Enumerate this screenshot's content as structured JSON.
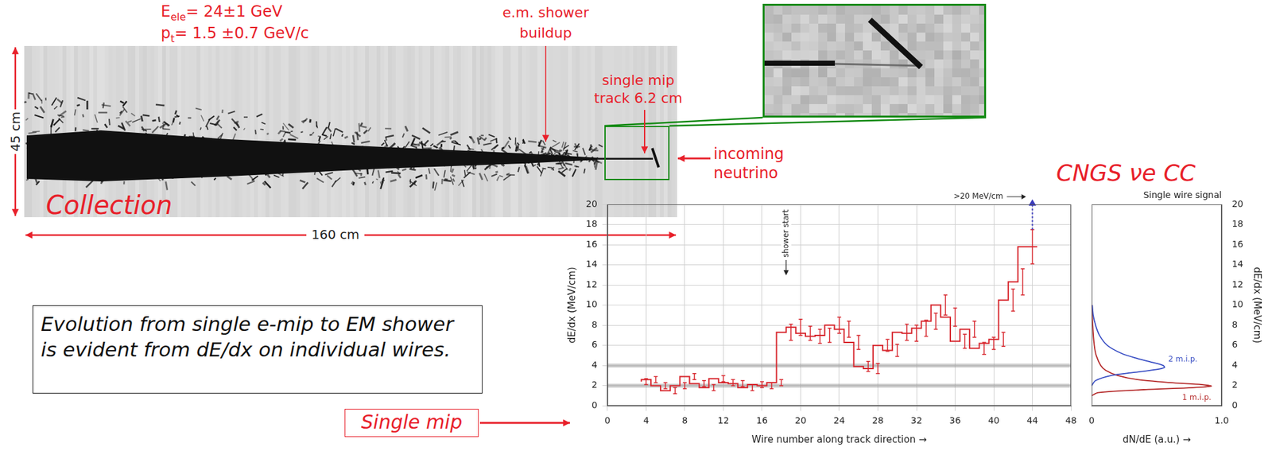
{
  "event_display": {
    "energy": {
      "symbol": "E",
      "subscript": "ele",
      "text": "= 24±1 GeV"
    },
    "pt": {
      "symbol": "p",
      "subscript": "t",
      "text": "= 1.5 ±0.7 GeV/c"
    },
    "shower_annotation": "e.m. shower buildup",
    "track_annotation": "single mip track 6.2 cm",
    "neutrino_annotation": "incoming neutrino",
    "height_label": "45 cm",
    "width_label": "160 cm",
    "view": "Collection"
  },
  "title": "CNGS νe CC",
  "caption": "Evolution from single e-mip to EM shower is evident from dE/dx on individual wires.",
  "callout": "Single mip",
  "chart_data": [
    {
      "type": "histogram",
      "x_label": "Wire number along track direction →",
      "y_label": "dE/dx (MeV/cm)",
      "bins": [
        3.5,
        4.5,
        5.5,
        6.5,
        7.5,
        8.5,
        9.5,
        10.5,
        11.5,
        12.5,
        13.5,
        14.5,
        15.5,
        16.5,
        17.5,
        18.5,
        19.5,
        20.5,
        21.5,
        22.5,
        23.5,
        24.5,
        25.5,
        26.5,
        27.5,
        28.5,
        29.5,
        30.5,
        31.5,
        32.5,
        33.5,
        34.5,
        35.5,
        36.5,
        37.5,
        38.5,
        39.5,
        40.5,
        41.5,
        42.5,
        43.5,
        44.5
      ],
      "values": [
        2.4,
        2.6,
        2.0,
        1.5,
        2.0,
        2.9,
        2.2,
        1.8,
        2.7,
        2.3,
        2.2,
        1.8,
        2.1,
        2.0,
        2.3,
        7.3,
        7.8,
        7.2,
        6.9,
        7.0,
        8.0,
        7.6,
        6.3,
        3.9,
        3.7,
        6.0,
        5.5,
        7.3,
        7.2,
        7.7,
        8.4,
        10.0,
        8.8,
        6.4,
        7.6,
        5.7,
        6.2,
        6.6,
        10.5,
        12.3,
        15.8
      ],
      "errors": [
        0.3,
        0.3,
        0.3,
        0.3,
        0.3,
        0.3,
        0.3,
        0.3,
        0.3,
        0.3,
        0.3,
        0.3,
        0.3,
        0.3,
        0.3,
        0.8,
        0.8,
        0.7,
        0.7,
        0.7,
        0.8,
        0.8,
        0.7,
        0.5,
        0.5,
        0.6,
        0.6,
        0.8,
        0.8,
        0.8,
        0.8,
        1.0,
        0.9,
        0.7,
        0.8,
        0.6,
        0.6,
        0.7,
        1.1,
        1.3,
        1.7
      ],
      "color": "#d7262d",
      "xlim": [
        0,
        48
      ],
      "xticks": [
        0,
        4,
        8,
        12,
        16,
        20,
        24,
        28,
        32,
        36,
        40,
        44,
        48
      ],
      "ylim": [
        0,
        20
      ],
      "yticks": [
        0,
        2,
        4,
        6,
        8,
        10,
        12,
        14,
        16,
        18,
        20
      ],
      "grid": true,
      "reference_lines": [
        2,
        4
      ],
      "annotations": [
        {
          "text": "shower start",
          "x": 18.5
        }
      ],
      "overflow": {
        "x": 44,
        "label": ">20 MeV/cm",
        "color": "#3b3bbd"
      }
    },
    {
      "type": "line",
      "title": "Single wire signal",
      "orientation": "horizontal",
      "x_label": "dN/dE (a.u.) →",
      "y_label": "dE/dx (MeV/cm)",
      "xlim": [
        0,
        1
      ],
      "xticks": [
        0,
        {
          "value": 1,
          "label": "1.0"
        }
      ],
      "ylim": [
        0,
        20
      ],
      "yticks": [
        0,
        2,
        4,
        6,
        8,
        10,
        12,
        14,
        16,
        18,
        20
      ],
      "grid": false,
      "series": [
        {
          "name": "2 m.i.p.",
          "color": "#3a4fc4",
          "y": [
            2.0,
            2.5,
            3.0,
            3.3,
            3.6,
            3.8,
            4.0,
            4.3,
            4.7,
            5.2,
            6.0,
            7.0,
            8.0,
            9.0,
            10.0
          ],
          "values": [
            0,
            0.03,
            0.15,
            0.32,
            0.5,
            0.56,
            0.55,
            0.47,
            0.35,
            0.23,
            0.12,
            0.06,
            0.03,
            0.012,
            0.005
          ]
        },
        {
          "name": "1 m.i.p.",
          "color": "#b52a2a",
          "y": [
            1.0,
            1.3,
            1.6,
            1.8,
            1.95,
            2.1,
            2.3,
            2.6,
            3.0,
            3.5,
            4.0,
            5.0,
            6.0,
            8.0,
            10.0
          ],
          "values": [
            0,
            0.05,
            0.4,
            0.78,
            0.92,
            0.85,
            0.6,
            0.35,
            0.2,
            0.11,
            0.07,
            0.035,
            0.02,
            0.008,
            0.003
          ]
        }
      ]
    }
  ]
}
